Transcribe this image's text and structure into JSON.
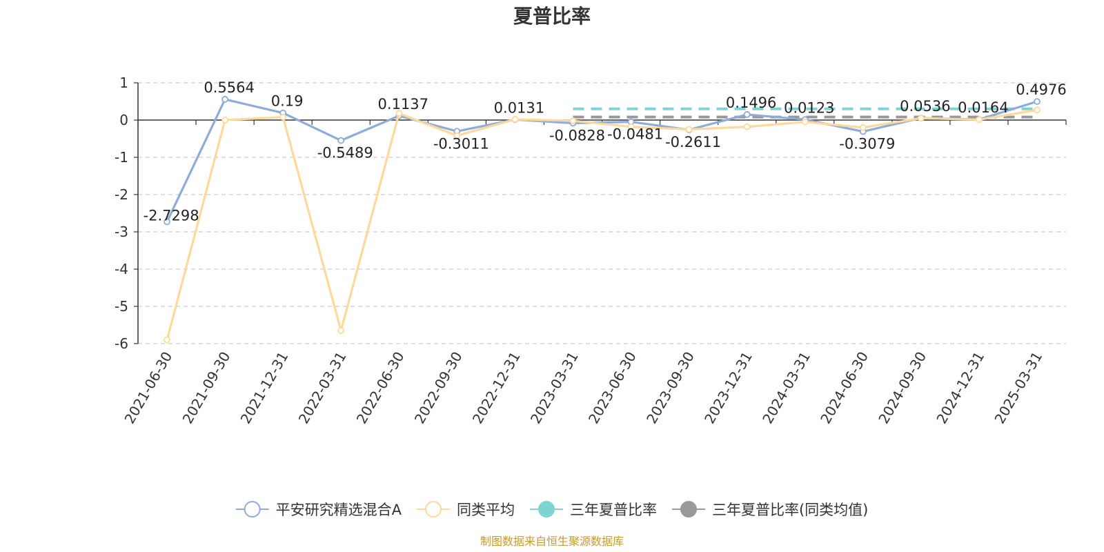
{
  "chart_data": {
    "type": "line",
    "title": "夏普比率",
    "source_note": "制图数据来自恒生聚源数据库",
    "categories": [
      "2021-06-30",
      "2021-09-30",
      "2021-12-31",
      "2022-03-31",
      "2022-06-30",
      "2022-09-30",
      "2022-12-31",
      "2023-03-31",
      "2023-06-30",
      "2023-09-30",
      "2023-12-31",
      "2024-03-31",
      "2024-06-30",
      "2024-09-30",
      "2024-12-31",
      "2025-03-31"
    ],
    "ylim": [
      -6,
      1
    ],
    "yticks": [
      "1",
      "0",
      "-1",
      "-2",
      "-3",
      "-4",
      "-5",
      "-6"
    ],
    "grid": true,
    "legend_position": "bottom",
    "series": [
      {
        "name": "平安研究精选混合A",
        "color": "#8eabd9",
        "values": [
          -2.7298,
          0.5564,
          0.19,
          -0.5489,
          0.1137,
          -0.3011,
          0.0131,
          -0.0828,
          -0.0481,
          -0.2611,
          0.1496,
          0.0123,
          -0.3079,
          0.0536,
          0.0164,
          0.4976
        ],
        "labels": [
          "-2.7298",
          "0.5564",
          "0.19",
          "-0.5489",
          "0.1137",
          "-0.3011",
          "0.0131",
          "-0.0828",
          "-0.0481",
          "-0.2611",
          "0.1496",
          "0.0123",
          "-0.3079",
          "0.0536",
          "0.0164",
          "0.4976"
        ]
      },
      {
        "name": "同类平均",
        "color": "#fdd99b",
        "values": [
          -5.9,
          0.0,
          0.08,
          -5.65,
          0.18,
          -0.42,
          0.02,
          -0.02,
          -0.18,
          -0.25,
          -0.18,
          -0.05,
          -0.2,
          0.05,
          0.01,
          0.27
        ]
      },
      {
        "name": "三年夏普比率",
        "color": "#7ed3d3",
        "style": "dashed",
        "segments": [
          {
            "from": "2023-03-31",
            "to": "2025-03-31",
            "value": 0.3
          }
        ]
      },
      {
        "name": "三年夏普比率(同类均值)",
        "color": "#999999",
        "style": "dashed",
        "segments": [
          {
            "from": "2023-03-31",
            "to": "2025-03-31",
            "value": 0.08
          }
        ]
      }
    ]
  }
}
